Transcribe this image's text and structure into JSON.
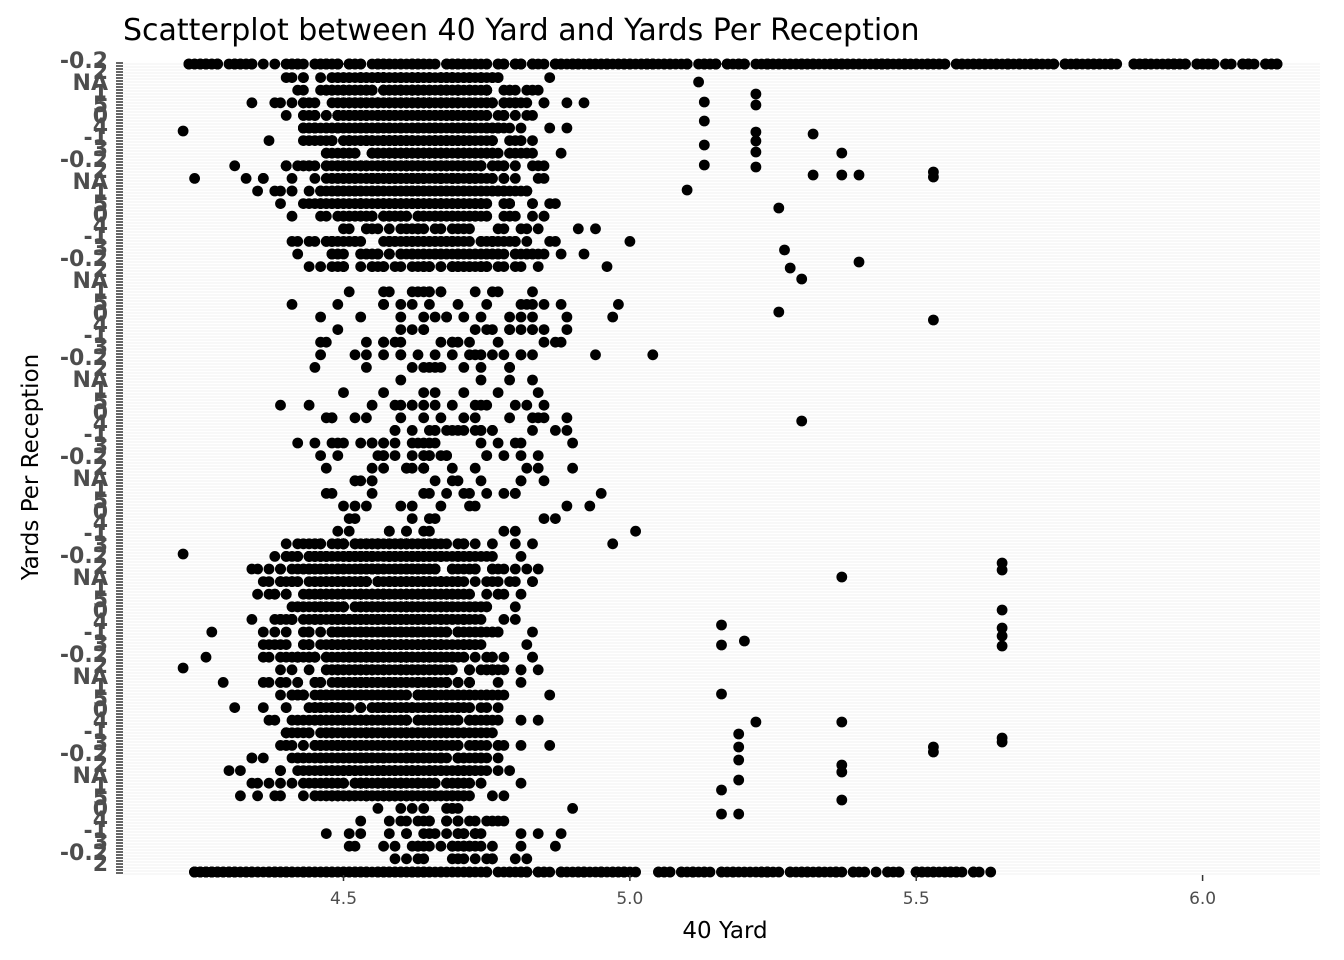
{
  "chart_data": {
    "type": "scatter",
    "title": "Scatterplot between 40 Yard and Yards Per Reception",
    "xlabel": "40 Yard",
    "ylabel": "Yards Per Reception",
    "xlim": [
      4.115,
      6.205
    ],
    "x_ticks": [
      4.5,
      5.0,
      5.5,
      6.0
    ],
    "x_tick_labels": [
      "4.5",
      "5.0",
      "5.5",
      "6.0"
    ],
    "y_axis": "discrete (categorical levels, labels overlapping and unreadable)",
    "y_label_fragments": [
      "NA",
      "5",
      "4",
      "3",
      "2",
      "1",
      "0",
      "-1",
      "-0.2"
    ],
    "grid": false,
    "legend": "none",
    "point_color": "#000000",
    "panel_background": "#ffffff"
  }
}
